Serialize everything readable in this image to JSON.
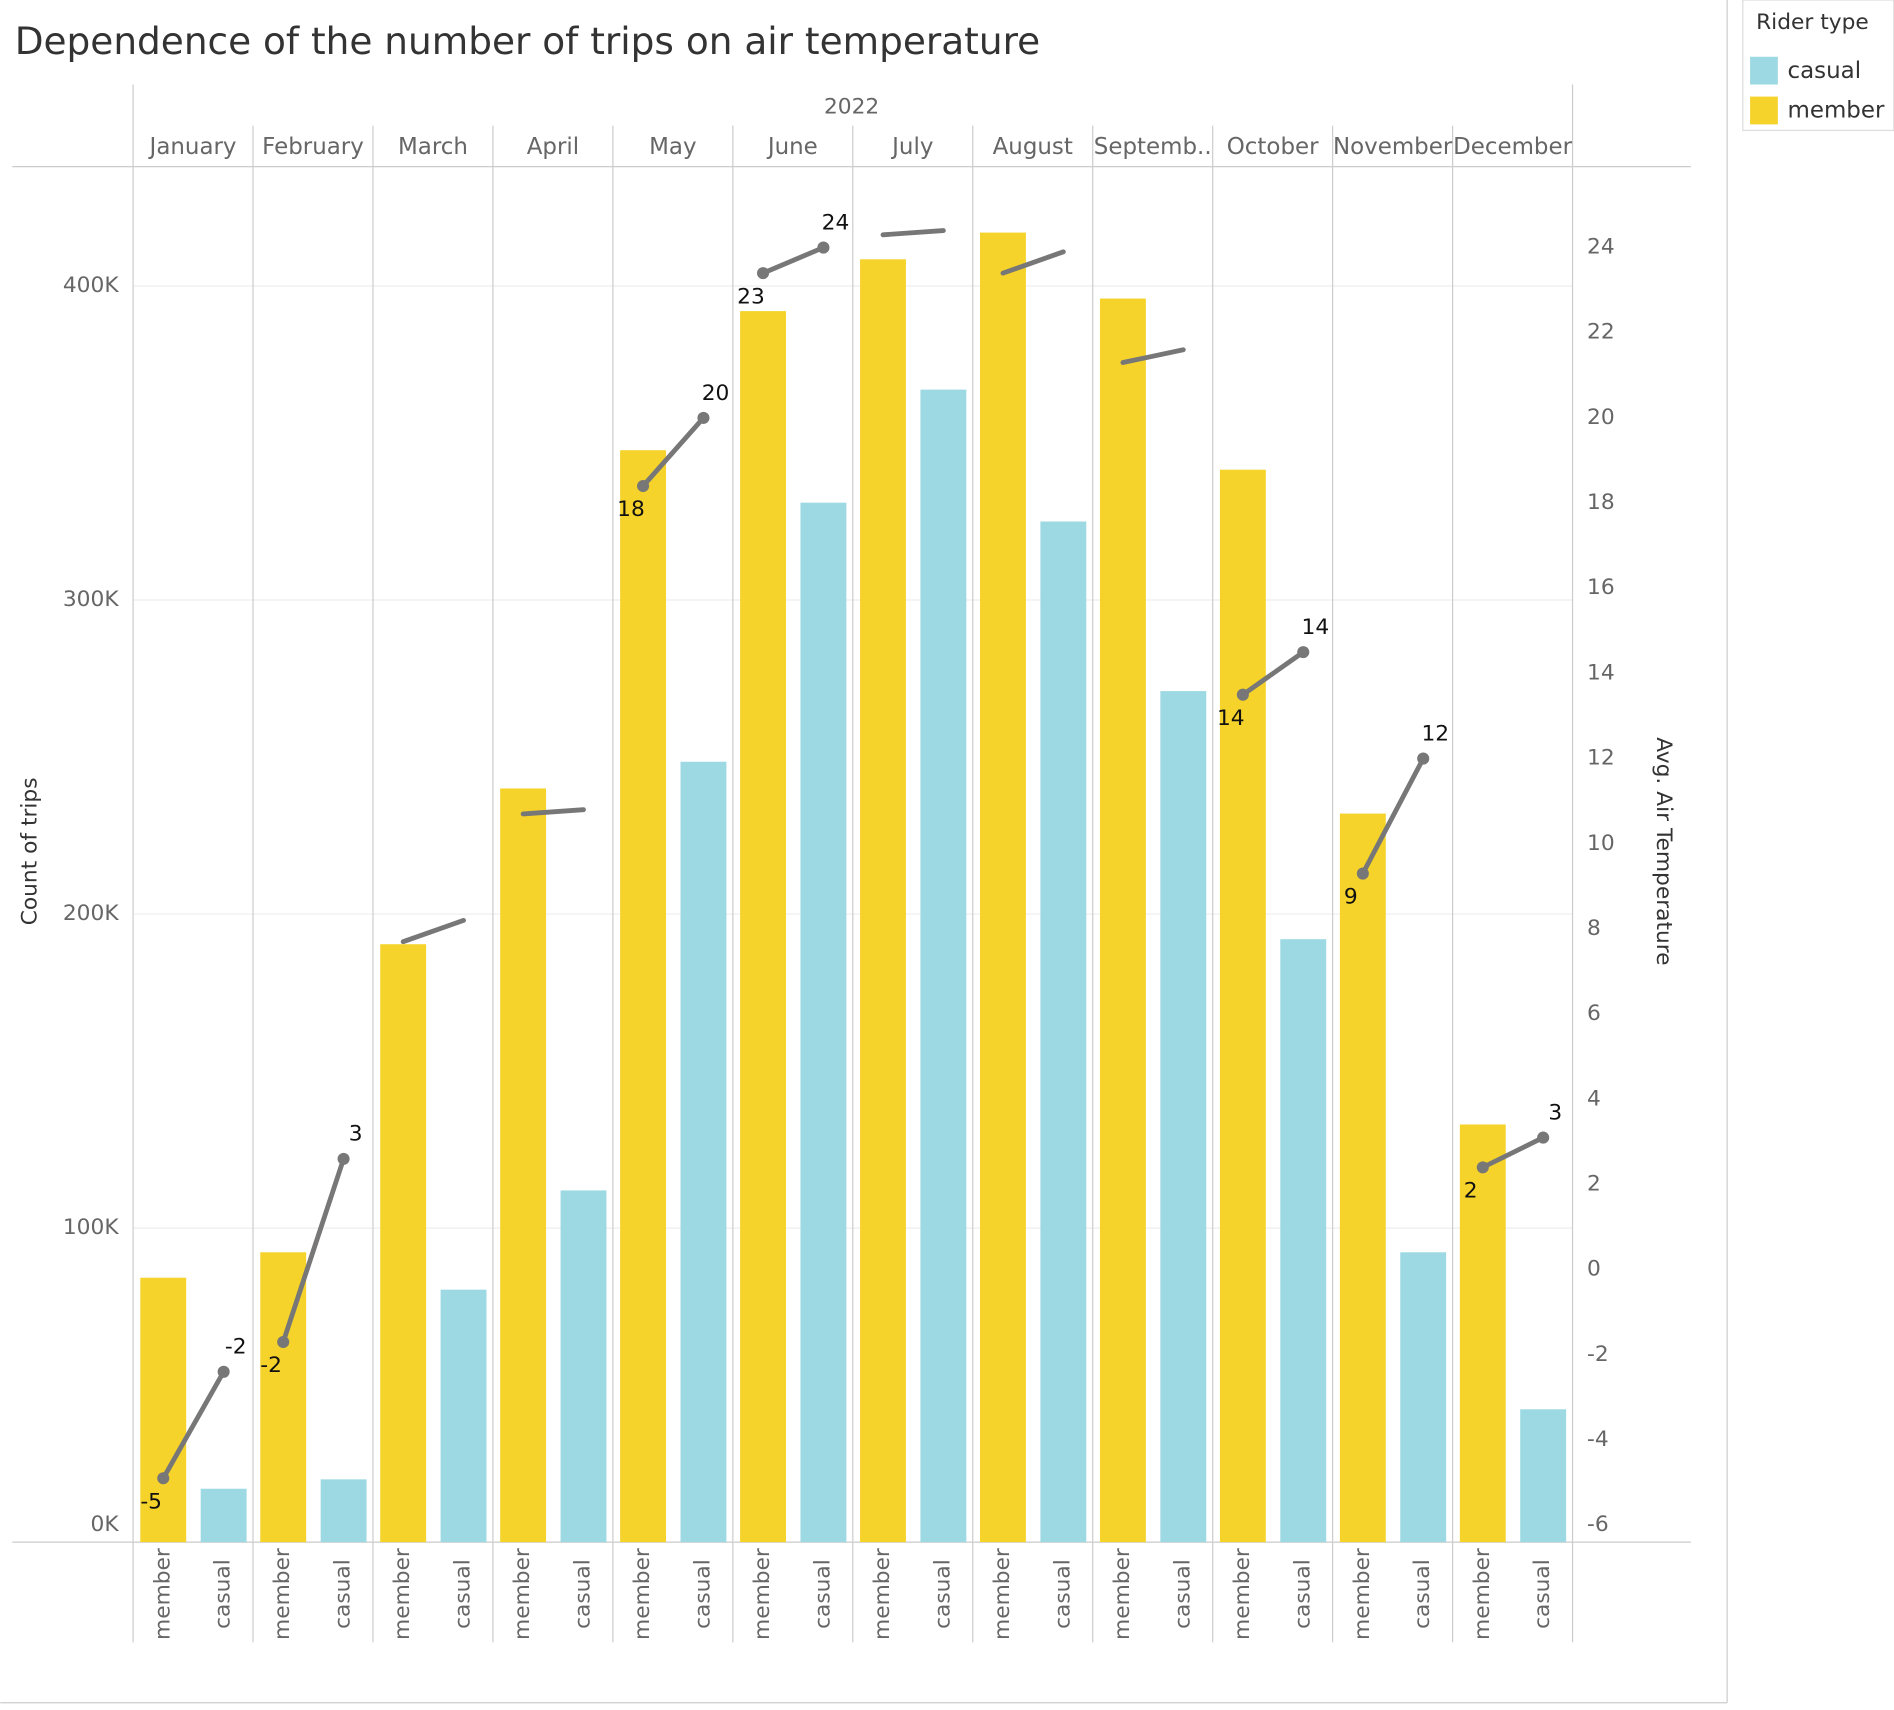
{
  "chart_data": {
    "type": "bar",
    "title": "Dependence of the number of trips on air temperature",
    "year": "2022",
    "categories": [
      "January",
      "February",
      "March",
      "April",
      "May",
      "June",
      "July",
      "August",
      "Septemb..",
      "October",
      "November",
      "December"
    ],
    "y_label": "Count of trips",
    "y2_label": "Avg. Air Temperature",
    "legend_title": "Rider type",
    "series": [
      {
        "name": "casual",
        "color": "#9dd9e3",
        "values": [
          17000,
          20000,
          80400,
          112000,
          248500,
          331000,
          367000,
          325000,
          271000,
          192000,
          92300,
          42300
        ]
      },
      {
        "name": "member",
        "color": "#f5d32a",
        "values": [
          84200,
          92300,
          190400,
          240000,
          347700,
          392000,
          408500,
          417000,
          396000,
          341500,
          232000,
          133000
        ]
      }
    ],
    "line_series": [
      {
        "name": "member",
        "axis": "y2",
        "color": "#777777",
        "values": [
          -4.9,
          -1.7,
          7.7,
          10.7,
          18.4,
          23.4,
          24.3,
          23.4,
          21.3,
          13.5,
          9.3,
          2.4
        ],
        "value_labels": [
          "-5",
          "-2",
          null,
          null,
          "18",
          "23",
          null,
          null,
          null,
          "14",
          "9",
          "2"
        ]
      },
      {
        "name": "casual",
        "axis": "y2",
        "color": "#777777",
        "values": [
          -2.4,
          2.6,
          8.2,
          10.8,
          20.0,
          24.0,
          24.4,
          23.9,
          21.6,
          14.5,
          12.0,
          3.1
        ],
        "value_labels": [
          "-2",
          "3",
          null,
          null,
          "20",
          "24",
          null,
          null,
          null,
          "14",
          "12",
          "3"
        ]
      }
    ],
    "ylim": [
      0,
      438000
    ],
    "yticks": [
      {
        "value": 0,
        "label": "0K"
      },
      {
        "value": 100000,
        "label": "100K"
      },
      {
        "value": 200000,
        "label": "200K"
      },
      {
        "value": 300000,
        "label": "300K"
      },
      {
        "value": 400000,
        "label": "400K"
      }
    ],
    "y2lim": [
      -6.4,
      25.9
    ],
    "y2ticks": [
      -6,
      -4,
      -2,
      0,
      2,
      4,
      6,
      8,
      10,
      12,
      14,
      16,
      18,
      20,
      22,
      24
    ],
    "grid": true
  }
}
